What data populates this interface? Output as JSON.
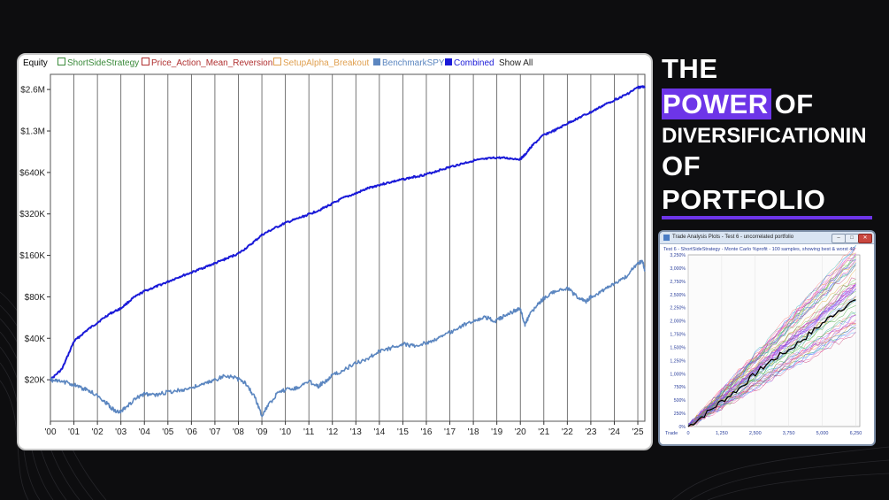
{
  "chart_data": [
    {
      "type": "line",
      "title": "",
      "xlabel": "",
      "ylabel": "Equity",
      "scale": "log",
      "x_tick_labels": [
        "'00",
        "'01",
        "'02",
        "'03",
        "'04",
        "'05",
        "'06",
        "'07",
        "'08",
        "'09",
        "'10",
        "'11",
        "'12",
        "'13",
        "'14",
        "'15",
        "'16",
        "'17",
        "'18",
        "'19",
        "'20",
        "'21",
        "'22",
        "'23",
        "'24",
        "'25"
      ],
      "y_tick_labels": [
        "$2.6M",
        "$1.3M",
        "$640K",
        "$320K",
        "$160K",
        "$80K",
        "$40K",
        "$20K"
      ],
      "y_tick_values": [
        2560000,
        1280000,
        640000,
        320000,
        160000,
        80000,
        40000,
        20000
      ],
      "xlim": [
        2000,
        2025.3
      ],
      "ylim": [
        10000,
        3300000
      ],
      "grid": "vertical",
      "legend": {
        "position": "top-left",
        "prefix": "Equity",
        "items": [
          {
            "label": "ShortSideStrategy",
            "color": "#3a8a3a",
            "marker": "box"
          },
          {
            "label": "Price_Action_Mean_Reversion",
            "color": "#b03030",
            "marker": "box"
          },
          {
            "label": "SetupAlpha_Breakout",
            "color": "#e0a050",
            "marker": "box"
          },
          {
            "label": "BenchmarkSPY",
            "color": "#5b86c0",
            "marker": "fill"
          },
          {
            "label": "Combined",
            "color": "#1a1ad8",
            "marker": "fill"
          }
        ],
        "show_all": "Show All"
      },
      "series": [
        {
          "name": "Combined",
          "color": "#1a1ad8",
          "x": [
            2000.0,
            2000.5,
            2001.0,
            2001.5,
            2002.0,
            2002.5,
            2003.0,
            2003.5,
            2004.0,
            2004.5,
            2005.0,
            2005.5,
            2006.0,
            2006.5,
            2007.0,
            2007.5,
            2008.0,
            2008.5,
            2009.0,
            2009.5,
            2010.0,
            2010.5,
            2011.0,
            2011.5,
            2012.0,
            2012.5,
            2013.0,
            2013.5,
            2014.0,
            2014.5,
            2015.0,
            2015.5,
            2016.0,
            2016.5,
            2017.0,
            2017.5,
            2018.0,
            2018.5,
            2019.0,
            2019.5,
            2020.0,
            2020.2,
            2020.5,
            2021.0,
            2021.5,
            2022.0,
            2022.5,
            2023.0,
            2023.5,
            2024.0,
            2024.5,
            2025.0,
            2025.3
          ],
          "y": [
            20000,
            24000,
            38000,
            45000,
            52000,
            60000,
            66000,
            78000,
            88000,
            95000,
            103000,
            112000,
            120000,
            130000,
            140000,
            152000,
            165000,
            190000,
            225000,
            250000,
            275000,
            295000,
            318000,
            345000,
            380000,
            420000,
            450000,
            490000,
            520000,
            545000,
            570000,
            595000,
            620000,
            660000,
            700000,
            740000,
            780000,
            800000,
            820000,
            810000,
            800000,
            860000,
            1000000,
            1200000,
            1300000,
            1450000,
            1600000,
            1750000,
            1950000,
            2150000,
            2350000,
            2650000,
            2700000
          ]
        },
        {
          "name": "BenchmarkSPY",
          "color": "#5b86c0",
          "x": [
            2000.0,
            2000.3,
            2000.8,
            2001.3,
            2001.7,
            2002.2,
            2002.6,
            2002.9,
            2003.2,
            2003.6,
            2004.0,
            2004.5,
            2005.0,
            2005.5,
            2006.0,
            2006.5,
            2007.0,
            2007.5,
            2007.9,
            2008.3,
            2008.7,
            2009.0,
            2009.2,
            2009.6,
            2010.0,
            2010.5,
            2011.0,
            2011.4,
            2011.7,
            2012.0,
            2012.5,
            2013.0,
            2013.5,
            2014.0,
            2014.5,
            2015.0,
            2015.5,
            2016.0,
            2016.5,
            2017.0,
            2017.5,
            2018.0,
            2018.5,
            2018.95,
            2019.3,
            2019.8,
            2020.0,
            2020.2,
            2020.4,
            2020.8,
            2021.0,
            2021.5,
            2022.0,
            2022.5,
            2022.8,
            2023.0,
            2023.5,
            2024.0,
            2024.5,
            2025.0,
            2025.2,
            2025.3
          ],
          "y": [
            20000,
            19500,
            19000,
            17500,
            16500,
            14500,
            12500,
            11500,
            12500,
            14500,
            15800,
            15500,
            16300,
            16800,
            17500,
            18500,
            20000,
            21500,
            20500,
            19000,
            15000,
            11000,
            12500,
            15500,
            17000,
            17500,
            19500,
            18000,
            19500,
            21500,
            23500,
            26500,
            28500,
            32000,
            34000,
            36500,
            35000,
            37000,
            40000,
            44000,
            49000,
            54000,
            57000,
            53000,
            58000,
            64000,
            66000,
            50000,
            60000,
            72000,
            78000,
            88000,
            92000,
            78000,
            74000,
            80000,
            88000,
            100000,
            112000,
            140000,
            145000,
            125000
          ]
        }
      ]
    },
    {
      "type": "line",
      "title": "Trade Analysis Plots - Test 6 - uncorrelated portfolio",
      "subtitle": "Test 6 - ShortSideStrategy - Monte Carlo %profit - 100 samples, showing best & worst 40",
      "xlabel": "Trade",
      "x_tick_labels": [
        "0",
        "1,250",
        "2,500",
        "3,750",
        "5,000",
        "6,250"
      ],
      "y_tick_labels": [
        "3,250%",
        "3,000%",
        "2,750%",
        "2,500%",
        "2,250%",
        "2,000%",
        "1,750%",
        "1,500%",
        "1,250%",
        "1,000%",
        "750%",
        "500%",
        "250%",
        "0%"
      ],
      "xlim": [
        0,
        6400
      ],
      "ylim": [
        0,
        3250
      ],
      "series": [
        {
          "name": "median",
          "color": "#000000",
          "x": [
            0,
            600,
            1250,
            1900,
            2500,
            3100,
            3750,
            4400,
            5000,
            5600,
            6250
          ],
          "y": [
            0,
            220,
            480,
            720,
            1000,
            1250,
            1450,
            1700,
            1950,
            2200,
            2400
          ]
        },
        {
          "name": "best",
          "color": "#4040ff",
          "x": [
            0,
            1250,
            2500,
            3750,
            5000,
            6250
          ],
          "y": [
            0,
            620,
            1300,
            1900,
            2500,
            3250
          ]
        },
        {
          "name": "worst",
          "color": "#20a020",
          "x": [
            0,
            1250,
            2500,
            3750,
            5000,
            6250
          ],
          "y": [
            0,
            350,
            700,
            1050,
            1400,
            1750
          ]
        }
      ]
    }
  ],
  "title": {
    "line1": "THE",
    "power": "POWER",
    "of": "OF",
    "line3": "DIVERSIFICATIONIN",
    "line4": "OF",
    "line5": "PORTFOLIO"
  },
  "monte_carlo_window": {
    "titlebar": "Trade Analysis Plots - Test 6 - uncorrelated portfolio",
    "buttons": [
      "–",
      "□",
      "✕"
    ]
  },
  "colors": {
    "accent": "#6d35e8",
    "background": "#0d0d0f",
    "combined": "#1a1ad8",
    "spy": "#5b86c0"
  }
}
